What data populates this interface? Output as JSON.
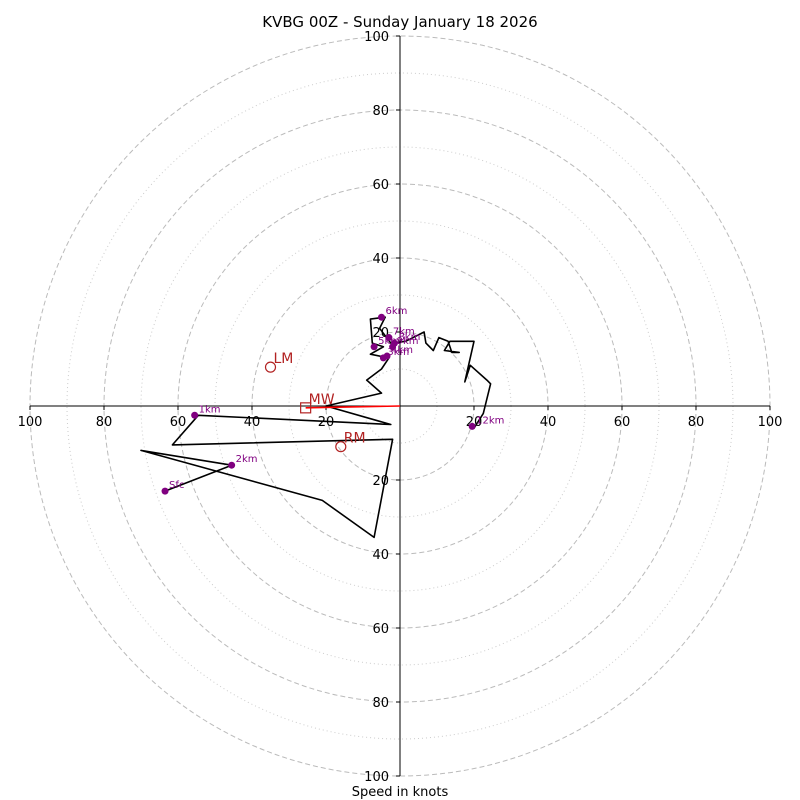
{
  "chart_data": {
    "type": "hodograph",
    "title": "KVBG 00Z - Sunday January 18 2026",
    "xlabel": "Speed in knots",
    "units": "knots",
    "xlim": [
      -100,
      100
    ],
    "ylim": [
      -100,
      100
    ],
    "rings": [
      20,
      40,
      60,
      80,
      100
    ],
    "minor_rings": [
      10,
      30,
      50,
      70,
      90
    ],
    "x_tick_labels": [
      "100",
      "80",
      "60",
      "40",
      "20",
      "20",
      "40",
      "60",
      "80",
      "100"
    ],
    "y_tick_labels": [
      "100",
      "80",
      "60",
      "40",
      "20",
      "20",
      "40",
      "60",
      "80",
      "100"
    ],
    "colors": {
      "trace": "#000000",
      "height_points": "#800080",
      "motion_markers": "#b22222",
      "mean_wind": "#ff0000",
      "grid": "#bbbbbb"
    },
    "trace": [
      [
        -63.5,
        -23
      ],
      [
        -45.5,
        -16
      ],
      [
        -70,
        -12
      ],
      [
        -21,
        -25.5
      ],
      [
        -7,
        -35.5
      ],
      [
        -2,
        -9
      ],
      [
        -61.5,
        -10.5
      ],
      [
        -54.5,
        -2.5
      ],
      [
        -2.5,
        -5
      ],
      [
        -20,
        0
      ],
      [
        -5,
        3.5
      ],
      [
        -9,
        7
      ],
      [
        -5,
        10
      ],
      [
        -3,
        13
      ],
      [
        -8,
        14
      ],
      [
        -4.5,
        16
      ],
      [
        -7.5,
        17
      ],
      [
        -8,
        23.5
      ],
      [
        -4,
        24
      ],
      [
        -5.5,
        21
      ],
      [
        -2.5,
        17
      ],
      [
        1.5,
        17.5
      ],
      [
        6.5,
        20
      ],
      [
        7,
        17
      ],
      [
        9,
        15
      ],
      [
        10.5,
        18.5
      ],
      [
        13,
        17.5
      ],
      [
        14,
        14.5
      ],
      [
        16,
        14.5
      ],
      [
        12,
        15
      ],
      [
        13.5,
        17.5
      ],
      [
        20,
        17.5
      ],
      [
        17.5,
        6.5
      ],
      [
        19,
        11
      ],
      [
        23.5,
        7
      ],
      [
        24.5,
        6
      ],
      [
        22.5,
        -2
      ],
      [
        20,
        -6
      ],
      [
        20,
        -5
      ],
      [
        19.5,
        -5.5
      ]
    ],
    "height_points": [
      {
        "label": "Sfc",
        "x": -63.5,
        "y": -23
      },
      {
        "label": "2km",
        "x": -45.5,
        "y": -16
      },
      {
        "label": "1km",
        "x": -55.5,
        "y": -2.5
      },
      {
        "label": "3km",
        "x": -4.5,
        "y": 13
      },
      {
        "label": "4km",
        "x": -3.5,
        "y": 13.5
      },
      {
        "label": "5km",
        "x": -7,
        "y": 16
      },
      {
        "label": "6km",
        "x": -5,
        "y": 24
      },
      {
        "label": "7km",
        "x": -3,
        "y": 18.5
      },
      {
        "label": "8km",
        "x": -1.5,
        "y": 17
      },
      {
        "label": "9km",
        "x": -2,
        "y": 16
      },
      {
        "label": "12km",
        "x": 19.5,
        "y": -5.5
      }
    ],
    "motion_markers": [
      {
        "label": "LM",
        "shape": "circle",
        "x": -35,
        "y": 10.5
      },
      {
        "label": "RM",
        "shape": "circle",
        "x": -16,
        "y": -11
      },
      {
        "label": "MW",
        "shape": "square",
        "x": -25.5,
        "y": -0.5
      }
    ],
    "mean_wind_line": {
      "from": [
        0,
        0
      ],
      "to": [
        -25.5,
        -0.5
      ]
    }
  }
}
